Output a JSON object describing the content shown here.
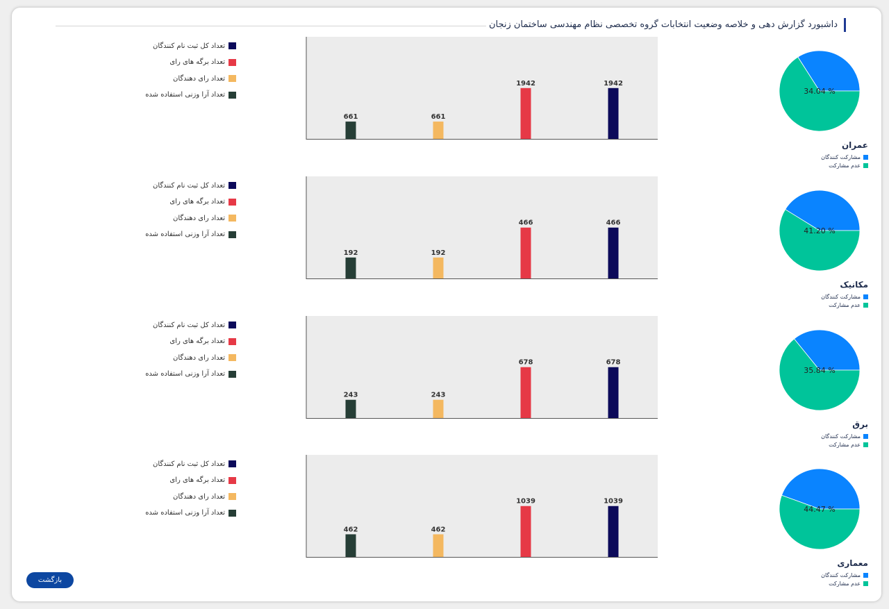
{
  "header": {
    "title": "داشبورد گزارش دهی و خلاصه وضعیت انتخابات گروه تخصصی نظام مهندسی ساختمان زنجان"
  },
  "colors": {
    "total_registered": "#0c0a5a",
    "ballots": "#e63946",
    "voters": "#f4b860",
    "weighted_votes": "#263e36",
    "participants": "#0a84ff",
    "non_participants": "#00c49a",
    "plot_bg": "#ececec"
  },
  "bar_legend": [
    {
      "key": "total_registered",
      "label": "تعداد کل ثبت نام کنندگان"
    },
    {
      "key": "ballots",
      "label": "تعداد برگه های رای"
    },
    {
      "key": "voters",
      "label": "تعداد رای دهندگان"
    },
    {
      "key": "weighted_votes",
      "label": "تعداد آرا وزنی استفاده شده"
    }
  ],
  "pie_legend": [
    {
      "key": "participants",
      "label": "مشارکت کنندگان"
    },
    {
      "key": "non_participants",
      "label": "عدم مشارکت"
    }
  ],
  "chart_data": [
    {
      "type": "bar",
      "group": "عمران",
      "categories": [
        "تعداد آرا وزنی استفاده شده",
        "تعداد رای دهندگان",
        "تعداد برگه های رای",
        "تعداد کل ثبت نام کنندگان"
      ],
      "values": [
        661,
        661,
        1942,
        1942
      ],
      "ylim": [
        0,
        3900
      ]
    },
    {
      "type": "pie",
      "group": "عمران",
      "labels": [
        "مشارکت کنندگان",
        "عدم مشارکت"
      ],
      "values": [
        34.04,
        65.96
      ],
      "display": "34.04 %"
    },
    {
      "type": "bar",
      "group": "مکانیک",
      "categories": [
        "تعداد آرا وزنی استفاده شده",
        "تعداد رای دهندگان",
        "تعداد برگه های رای",
        "تعداد کل ثبت نام کنندگان"
      ],
      "values": [
        192,
        192,
        466,
        466
      ],
      "ylim": [
        0,
        935
      ]
    },
    {
      "type": "pie",
      "group": "مکانیک",
      "labels": [
        "مشارکت کنندگان",
        "عدم مشارکت"
      ],
      "values": [
        41.2,
        58.8
      ],
      "display": "41.20 %"
    },
    {
      "type": "bar",
      "group": "برق",
      "categories": [
        "تعداد آرا وزنی استفاده شده",
        "تعداد رای دهندگان",
        "تعداد برگه های رای",
        "تعداد کل ثبت نام کنندگان"
      ],
      "values": [
        243,
        243,
        678,
        678
      ],
      "ylim": [
        0,
        1360
      ]
    },
    {
      "type": "pie",
      "group": "برق",
      "labels": [
        "مشارکت کنندگان",
        "عدم مشارکت"
      ],
      "values": [
        35.84,
        64.16
      ],
      "display": "35.84 %"
    },
    {
      "type": "bar",
      "group": "معماری",
      "categories": [
        "تعداد آرا وزنی استفاده شده",
        "تعداد رای دهندگان",
        "تعداد برگه های رای",
        "تعداد کل ثبت نام کنندگان"
      ],
      "values": [
        462,
        462,
        1039,
        1039
      ],
      "ylim": [
        0,
        2085
      ]
    },
    {
      "type": "pie",
      "group": "معماری",
      "labels": [
        "مشارکت کنندگان",
        "عدم مشارکت"
      ],
      "values": [
        44.47,
        55.53
      ],
      "display": "44.47 %"
    }
  ],
  "back_button": {
    "label": "بازگشت"
  }
}
